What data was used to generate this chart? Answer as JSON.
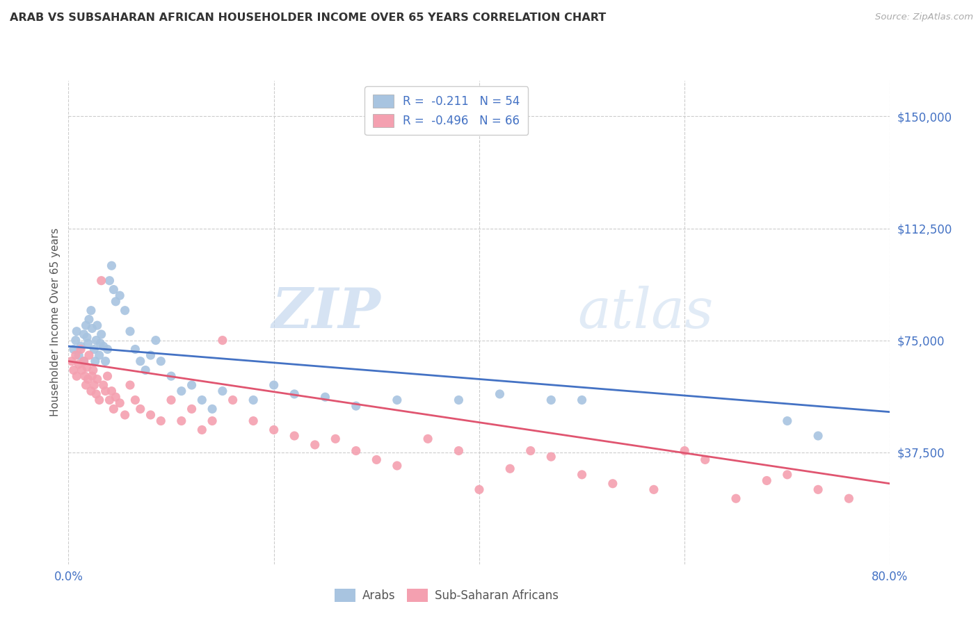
{
  "title": "ARAB VS SUBSAHARAN AFRICAN HOUSEHOLDER INCOME OVER 65 YEARS CORRELATION CHART",
  "source": "Source: ZipAtlas.com",
  "ylabel": "Householder Income Over 65 years",
  "ytick_labels": [
    "$37,500",
    "$75,000",
    "$112,500",
    "$150,000"
  ],
  "ytick_values": [
    37500,
    75000,
    112500,
    150000
  ],
  "xlim": [
    0.0,
    0.8
  ],
  "ylim": [
    0,
    162000
  ],
  "legend_entry1": "R =  -0.211   N = 54",
  "legend_entry2": "R =  -0.496   N = 66",
  "legend_label1": "Arabs",
  "legend_label2": "Sub-Saharan Africans",
  "color_arab": "#a8c4e0",
  "color_african": "#f4a0b0",
  "color_arab_line": "#4472c4",
  "color_african_line": "#e05570",
  "watermark_zip": "ZIP",
  "watermark_atlas": "atlas",
  "title_color": "#333333",
  "axis_color": "#4472c4",
  "arab_x": [
    0.005,
    0.007,
    0.008,
    0.01,
    0.012,
    0.015,
    0.015,
    0.017,
    0.018,
    0.019,
    0.02,
    0.022,
    0.023,
    0.025,
    0.026,
    0.027,
    0.028,
    0.03,
    0.031,
    0.032,
    0.034,
    0.036,
    0.038,
    0.04,
    0.042,
    0.044,
    0.046,
    0.05,
    0.055,
    0.06,
    0.065,
    0.07,
    0.075,
    0.08,
    0.085,
    0.09,
    0.1,
    0.11,
    0.12,
    0.13,
    0.14,
    0.15,
    0.18,
    0.2,
    0.22,
    0.25,
    0.28,
    0.32,
    0.38,
    0.42,
    0.47,
    0.5,
    0.7,
    0.73
  ],
  "arab_y": [
    72000,
    75000,
    78000,
    70000,
    73000,
    68000,
    77000,
    80000,
    76000,
    74000,
    82000,
    85000,
    79000,
    72000,
    68000,
    75000,
    80000,
    70000,
    74000,
    77000,
    73000,
    68000,
    72000,
    95000,
    100000,
    92000,
    88000,
    90000,
    85000,
    78000,
    72000,
    68000,
    65000,
    70000,
    75000,
    68000,
    63000,
    58000,
    60000,
    55000,
    52000,
    58000,
    55000,
    60000,
    57000,
    56000,
    53000,
    55000,
    55000,
    57000,
    55000,
    55000,
    48000,
    43000
  ],
  "african_x": [
    0.003,
    0.005,
    0.007,
    0.008,
    0.01,
    0.012,
    0.013,
    0.015,
    0.016,
    0.017,
    0.018,
    0.019,
    0.02,
    0.022,
    0.023,
    0.024,
    0.025,
    0.027,
    0.028,
    0.03,
    0.032,
    0.034,
    0.036,
    0.038,
    0.04,
    0.042,
    0.044,
    0.046,
    0.05,
    0.055,
    0.06,
    0.065,
    0.07,
    0.08,
    0.09,
    0.1,
    0.11,
    0.12,
    0.13,
    0.14,
    0.15,
    0.16,
    0.18,
    0.2,
    0.22,
    0.24,
    0.26,
    0.28,
    0.3,
    0.32,
    0.35,
    0.38,
    0.4,
    0.43,
    0.45,
    0.47,
    0.5,
    0.53,
    0.57,
    0.6,
    0.62,
    0.65,
    0.68,
    0.7,
    0.73,
    0.76
  ],
  "african_y": [
    68000,
    65000,
    70000,
    63000,
    67000,
    72000,
    65000,
    68000,
    63000,
    60000,
    66000,
    62000,
    70000,
    58000,
    63000,
    65000,
    60000,
    57000,
    62000,
    55000,
    95000,
    60000,
    58000,
    63000,
    55000,
    58000,
    52000,
    56000,
    54000,
    50000,
    60000,
    55000,
    52000,
    50000,
    48000,
    55000,
    48000,
    52000,
    45000,
    48000,
    75000,
    55000,
    48000,
    45000,
    43000,
    40000,
    42000,
    38000,
    35000,
    33000,
    42000,
    38000,
    25000,
    32000,
    38000,
    36000,
    30000,
    27000,
    25000,
    38000,
    35000,
    22000,
    28000,
    30000,
    25000,
    22000
  ],
  "arab_line_x": [
    0.0,
    0.8
  ],
  "arab_line_y": [
    73000,
    51000
  ],
  "african_line_x": [
    0.0,
    0.8
  ],
  "african_line_y": [
    68000,
    27000
  ]
}
